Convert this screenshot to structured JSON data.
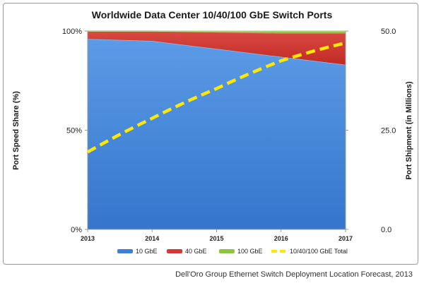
{
  "chart_data": {
    "type": "area",
    "title": "Worldwide Data Center 10/40/100 GbE Switch Ports",
    "categories": [
      "2013",
      "2014",
      "2015",
      "2016",
      "2017"
    ],
    "xlabel": "",
    "ylabel_left": "Port Speed Share (%)",
    "ylabel_right": "Port Shipment (in Millions)",
    "y_left": {
      "ylim": [
        0,
        100
      ],
      "ticks": [
        0,
        50,
        100
      ],
      "tick_labels": [
        "0%",
        "50%",
        "100%"
      ]
    },
    "y_right": {
      "ylim": [
        0,
        50
      ],
      "ticks": [
        0,
        25,
        50
      ],
      "tick_labels": [
        "0.0",
        "25.0",
        "50.0"
      ]
    },
    "grid": false,
    "legend_position": "bottom",
    "series": [
      {
        "name": "10 GbE",
        "type": "stacked-area-percent",
        "axis": "left",
        "color": "#3d7fd6",
        "values": [
          96,
          95,
          91,
          87,
          83
        ]
      },
      {
        "name": "40 GbE",
        "type": "stacked-area-percent",
        "axis": "left",
        "color": "#d63a34",
        "values": [
          4,
          5,
          8.5,
          12,
          16
        ]
      },
      {
        "name": "100 GbE",
        "type": "stacked-area-percent",
        "axis": "left",
        "color": "#8cc63f",
        "values": [
          0,
          0,
          0.5,
          1,
          1
        ]
      },
      {
        "name": "10/40/100 GbE Total",
        "type": "line",
        "axis": "right",
        "color": "#ffe800",
        "dashed": true,
        "values": [
          19.5,
          28,
          35.5,
          42.5,
          47
        ]
      }
    ]
  },
  "source_note": "Dell'Oro Group Ethernet Switch Deployment Location Forecast, 2013"
}
